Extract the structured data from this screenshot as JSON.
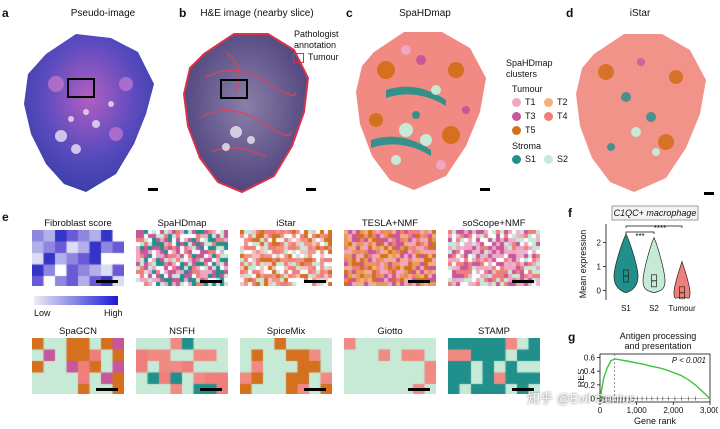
{
  "panels": {
    "a": {
      "letter": "a",
      "title": "Pseudo-image"
    },
    "b": {
      "letter": "b",
      "title": "H&E image (nearby slice)",
      "annotation_title": "Pathologist annotation",
      "annotation_label": "Tumour"
    },
    "c": {
      "letter": "c",
      "title": "SpaHDmap"
    },
    "d": {
      "letter": "d",
      "title": "iStar"
    },
    "e": {
      "letter": "e"
    },
    "f": {
      "letter": "f"
    },
    "g": {
      "letter": "g"
    }
  },
  "legend": {
    "title": "SpaHDmap clusters",
    "tumour_header": "Tumour",
    "stroma_header": "Stroma",
    "items": [
      {
        "label": "T1",
        "color": "#f0a6c4"
      },
      {
        "label": "T2",
        "color": "#f2b07a"
      },
      {
        "label": "T3",
        "color": "#c8569a"
      },
      {
        "label": "T4",
        "color": "#ef7f7a"
      },
      {
        "label": "T5",
        "color": "#d4701e"
      },
      {
        "label": "S1",
        "color": "#21908c"
      },
      {
        "label": "S2",
        "color": "#c6ead6"
      }
    ]
  },
  "thumbnails": [
    {
      "title": "Fibroblast score"
    },
    {
      "title": "SpaHDmap"
    },
    {
      "title": "iStar"
    },
    {
      "title": "TESLA+NMF"
    },
    {
      "title": "soScope+NMF"
    },
    {
      "title": "SpaGCN"
    },
    {
      "title": "NSFH"
    },
    {
      "title": "SpiceMix"
    },
    {
      "title": "Giotto"
    },
    {
      "title": "STAMP"
    }
  ],
  "colorbar": {
    "low": "Low",
    "high": "High"
  },
  "chart_data": [
    {
      "type": "violin",
      "title": "C1QC+ macrophage",
      "ylabel": "Mean expression",
      "categories": [
        "S1",
        "S2",
        "Tumour"
      ],
      "yticks": [
        "0",
        "1",
        "2"
      ],
      "ylim": [
        -0.4,
        2.6
      ],
      "medians": [
        0.6,
        0.4,
        -0.1
      ],
      "colors": [
        "#21908c",
        "#c6ead6",
        "#ef7f7a"
      ],
      "significance": [
        "***",
        "****"
      ]
    },
    {
      "type": "line",
      "title": "Antigen processing and presentation",
      "xlabel": "Gene rank",
      "ylabel": "RES",
      "annotation": "P < 0.001",
      "xticks": [
        "0",
        "1,000",
        "2,000",
        "3,000"
      ],
      "yticks": [
        "0",
        "0.2",
        "0.4",
        "0.6"
      ],
      "xlim": [
        0,
        3000
      ],
      "ylim": [
        -0.05,
        0.65
      ],
      "x": [
        0,
        100,
        200,
        300,
        400,
        500,
        600,
        800,
        1000,
        1200,
        1400,
        1600,
        1800,
        2000,
        2200,
        2400,
        2600,
        2800,
        3000
      ],
      "y": [
        0.0,
        0.3,
        0.45,
        0.55,
        0.58,
        0.57,
        0.56,
        0.54,
        0.52,
        0.5,
        0.47,
        0.45,
        0.42,
        0.38,
        0.34,
        0.28,
        0.2,
        0.1,
        0.0
      ],
      "line_color": "#3cc43c"
    }
  ],
  "watermark": "知乎 @Evil Genius"
}
